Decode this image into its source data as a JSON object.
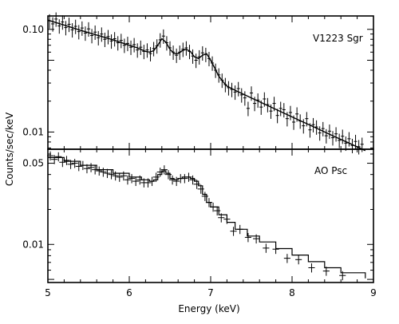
{
  "chart_data": [
    {
      "type": "scatter",
      "panel_label": "V1223 Sgr",
      "xlabel": "Energy (keV)",
      "ylabel": "Counts/sec/keV",
      "x_scale": "linear",
      "y_scale": "log",
      "xlim": [
        5,
        9
      ],
      "ylim": [
        0.0068,
        0.135
      ],
      "x_ticks": [
        5,
        6,
        7,
        8,
        9
      ],
      "y_ticks": [
        0.01,
        0.1
      ],
      "y_tick_labels": [
        "0.01",
        "0.10"
      ],
      "model": {
        "x": [
          5.0,
          5.2,
          5.4,
          5.6,
          5.8,
          6.0,
          6.1,
          6.2,
          6.25,
          6.3,
          6.35,
          6.4,
          6.45,
          6.5,
          6.55,
          6.6,
          6.65,
          6.7,
          6.75,
          6.8,
          6.85,
          6.9,
          6.95,
          7.0,
          7.05,
          7.1,
          7.15,
          7.2,
          7.3,
          7.5,
          7.7,
          7.9,
          8.1,
          8.3,
          8.5,
          8.7,
          8.9
        ],
        "y": [
          0.123,
          0.11,
          0.098,
          0.088,
          0.079,
          0.07,
          0.066,
          0.061,
          0.06,
          0.062,
          0.07,
          0.081,
          0.075,
          0.064,
          0.058,
          0.058,
          0.062,
          0.064,
          0.061,
          0.054,
          0.052,
          0.056,
          0.058,
          0.05,
          0.042,
          0.035,
          0.031,
          0.028,
          0.0255,
          0.0215,
          0.0181,
          0.0153,
          0.0129,
          0.0109,
          0.0092,
          0.0078,
          0.0066
        ]
      },
      "data": {
        "x": [
          5.02,
          5.06,
          5.1,
          5.14,
          5.18,
          5.22,
          5.26,
          5.3,
          5.34,
          5.38,
          5.42,
          5.46,
          5.5,
          5.54,
          5.58,
          5.62,
          5.66,
          5.7,
          5.74,
          5.78,
          5.82,
          5.86,
          5.9,
          5.94,
          5.98,
          6.02,
          6.06,
          6.1,
          6.14,
          6.18,
          6.22,
          6.26,
          6.3,
          6.34,
          6.38,
          6.42,
          6.46,
          6.5,
          6.54,
          6.58,
          6.62,
          6.66,
          6.7,
          6.74,
          6.78,
          6.82,
          6.86,
          6.9,
          6.94,
          6.98,
          7.02,
          7.06,
          7.1,
          7.14,
          7.18,
          7.22,
          7.26,
          7.3,
          7.34,
          7.38,
          7.42,
          7.46,
          7.5,
          7.54,
          7.58,
          7.62,
          7.66,
          7.7,
          7.74,
          7.78,
          7.82,
          7.86,
          7.9,
          7.94,
          7.98,
          8.02,
          8.06,
          8.1,
          8.14,
          8.18,
          8.22,
          8.26,
          8.3,
          8.34,
          8.38,
          8.42,
          8.46,
          8.5,
          8.54,
          8.58,
          8.62,
          8.66,
          8.7,
          8.74,
          8.78,
          8.82,
          8.86
        ],
        "y": [
          0.121,
          0.113,
          0.126,
          0.108,
          0.118,
          0.104,
          0.112,
          0.099,
          0.107,
          0.095,
          0.103,
          0.092,
          0.101,
          0.087,
          0.094,
          0.083,
          0.09,
          0.08,
          0.085,
          0.077,
          0.081,
          0.074,
          0.078,
          0.07,
          0.073,
          0.067,
          0.071,
          0.063,
          0.067,
          0.061,
          0.063,
          0.058,
          0.065,
          0.069,
          0.079,
          0.086,
          0.074,
          0.066,
          0.06,
          0.056,
          0.06,
          0.064,
          0.066,
          0.061,
          0.055,
          0.05,
          0.054,
          0.059,
          0.057,
          0.052,
          0.047,
          0.04,
          0.036,
          0.032,
          0.029,
          0.027,
          0.026,
          0.0245,
          0.0265,
          0.023,
          0.0215,
          0.017,
          0.024,
          0.019,
          0.0205,
          0.0175,
          0.021,
          0.0185,
          0.016,
          0.019,
          0.0145,
          0.017,
          0.0165,
          0.0135,
          0.0155,
          0.0125,
          0.015,
          0.0128,
          0.0115,
          0.0135,
          0.0105,
          0.0118,
          0.0112,
          0.0098,
          0.0108,
          0.0092,
          0.0102,
          0.0088,
          0.0096,
          0.0083,
          0.0091,
          0.0078,
          0.0086,
          0.0074,
          0.0081,
          0.0072,
          0.0076
        ],
        "y_err_frac": 0.16
      }
    },
    {
      "type": "scatter",
      "panel_label": "AO Psc",
      "xlabel": "Energy (keV)",
      "ylabel": "Counts/sec/keV",
      "x_scale": "linear",
      "y_scale": "log",
      "xlim": [
        5,
        9
      ],
      "ylim": [
        0.0047,
        0.066
      ],
      "x_ticks": [
        5,
        6,
        7,
        8,
        9
      ],
      "x_tick_labels": [
        "5",
        "6",
        "7",
        "8",
        "9"
      ],
      "y_ticks": [
        0.01,
        0.05
      ],
      "y_tick_labels": [
        "0.01",
        "0.05"
      ],
      "model": {
        "x": [
          5.0,
          5.2,
          5.4,
          5.6,
          5.8,
          6.0,
          6.15,
          6.25,
          6.3,
          6.35,
          6.4,
          6.45,
          6.5,
          6.55,
          6.6,
          6.65,
          6.7,
          6.75,
          6.8,
          6.85,
          6.9,
          6.95,
          7.0,
          7.1,
          7.2,
          7.3,
          7.45,
          7.6,
          7.8,
          8.0,
          8.2,
          8.4,
          8.6,
          8.9
        ],
        "y": [
          0.056,
          0.052,
          0.048,
          0.044,
          0.041,
          0.038,
          0.036,
          0.035,
          0.036,
          0.04,
          0.043,
          0.041,
          0.037,
          0.036,
          0.037,
          0.038,
          0.038,
          0.037,
          0.035,
          0.032,
          0.027,
          0.023,
          0.021,
          0.018,
          0.0155,
          0.0135,
          0.0118,
          0.0105,
          0.0092,
          0.0081,
          0.0071,
          0.0063,
          0.0057,
          0.0051
        ]
      },
      "data": {
        "x": [
          5.03,
          5.08,
          5.13,
          5.18,
          5.23,
          5.28,
          5.33,
          5.38,
          5.43,
          5.48,
          5.53,
          5.58,
          5.63,
          5.68,
          5.73,
          5.78,
          5.83,
          5.88,
          5.93,
          5.98,
          6.03,
          6.08,
          6.13,
          6.18,
          6.23,
          6.28,
          6.33,
          6.38,
          6.43,
          6.48,
          6.53,
          6.58,
          6.63,
          6.68,
          6.73,
          6.78,
          6.83,
          6.88,
          6.93,
          6.98,
          7.03,
          7.08,
          7.13,
          7.2,
          7.28,
          7.36,
          7.46,
          7.56,
          7.68,
          7.8,
          7.94,
          8.08,
          8.24,
          8.42,
          8.62
        ],
        "y": [
          0.058,
          0.054,
          0.057,
          0.051,
          0.053,
          0.049,
          0.05,
          0.047,
          0.048,
          0.045,
          0.046,
          0.044,
          0.043,
          0.042,
          0.041,
          0.04,
          0.039,
          0.038,
          0.039,
          0.036,
          0.037,
          0.035,
          0.036,
          0.034,
          0.034,
          0.035,
          0.038,
          0.042,
          0.044,
          0.04,
          0.036,
          0.035,
          0.037,
          0.037,
          0.038,
          0.036,
          0.033,
          0.03,
          0.026,
          0.023,
          0.021,
          0.0195,
          0.017,
          0.0165,
          0.013,
          0.0135,
          0.0115,
          0.0112,
          0.0093,
          0.0091,
          0.0076,
          0.0074,
          0.0063,
          0.0059,
          0.0054
        ],
        "y_err_frac": 0.09,
        "x_half_width": 0.04
      }
    }
  ]
}
